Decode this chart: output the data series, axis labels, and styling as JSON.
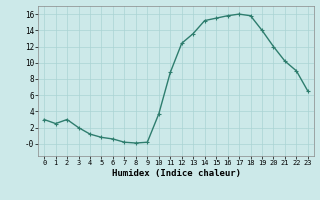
{
  "x": [
    0,
    1,
    2,
    3,
    4,
    5,
    6,
    7,
    8,
    9,
    10,
    11,
    12,
    13,
    14,
    15,
    16,
    17,
    18,
    19,
    20,
    21,
    22,
    23
  ],
  "y": [
    3.0,
    2.5,
    3.0,
    2.0,
    1.2,
    0.8,
    0.6,
    0.2,
    0.1,
    0.2,
    3.7,
    8.8,
    12.4,
    13.6,
    15.2,
    15.5,
    15.8,
    16.0,
    15.8,
    14.0,
    12.0,
    10.2,
    9.0,
    6.5
  ],
  "line_color": "#2e7d6e",
  "marker": "+",
  "marker_size": 3,
  "linewidth": 1.0,
  "background_color": "#cce9e9",
  "grid_color": "#aad4d4",
  "xlabel": "Humidex (Indice chaleur)",
  "xlim": [
    -0.5,
    23.5
  ],
  "ylim": [
    -1.5,
    17
  ],
  "yticks": [
    0,
    2,
    4,
    6,
    8,
    10,
    12,
    14,
    16
  ],
  "ytick_labels": [
    "-0",
    "2",
    "4",
    "6",
    "8",
    "10",
    "12",
    "14",
    "16"
  ],
  "xticks": [
    0,
    1,
    2,
    3,
    4,
    5,
    6,
    7,
    8,
    9,
    10,
    11,
    12,
    13,
    14,
    15,
    16,
    17,
    18,
    19,
    20,
    21,
    22,
    23
  ]
}
